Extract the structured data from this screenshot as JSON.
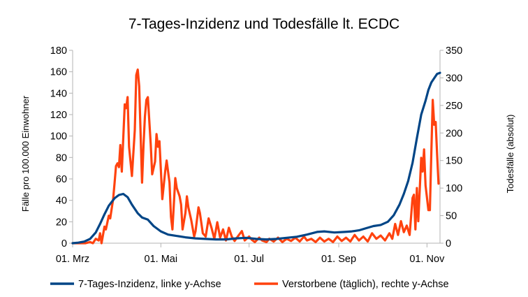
{
  "chart_data": {
    "type": "line",
    "title": "7-Tages-Inzidenz und Todesfälle lt. ECDC",
    "ylabel_left": "Fälle pro 100.000 Einwohner",
    "ylabel_right": "Todesfälle (absolut)",
    "xlabel": "",
    "grid": false,
    "legend_position": "bottom",
    "xlim": [
      "2020-03-01",
      "2020-11-10"
    ],
    "ylim_left": [
      0,
      180
    ],
    "ylim_right": [
      0,
      350
    ],
    "x_ticks": [
      {
        "date": "2020-03-01",
        "label": "01. Mrz"
      },
      {
        "date": "2020-05-01",
        "label": "01. Mai"
      },
      {
        "date": "2020-07-01",
        "label": "01. Jul"
      },
      {
        "date": "2020-09-01",
        "label": "01. Sep"
      },
      {
        "date": "2020-11-01",
        "label": "01. Nov"
      }
    ],
    "y_ticks_left": [
      0,
      20,
      40,
      60,
      80,
      100,
      120,
      140,
      160,
      180
    ],
    "y_ticks_right": [
      0,
      50,
      100,
      150,
      200,
      250,
      300,
      350
    ],
    "series": [
      {
        "name": "7-Tages-Inzidenz, linke y-Achse",
        "axis": "left",
        "color": "#004586",
        "points": [
          [
            "2020-03-01",
            0
          ],
          [
            "2020-03-05",
            0.5
          ],
          [
            "2020-03-09",
            1.5
          ],
          [
            "2020-03-13",
            4
          ],
          [
            "2020-03-17",
            10
          ],
          [
            "2020-03-20",
            18
          ],
          [
            "2020-03-23",
            27
          ],
          [
            "2020-03-26",
            35
          ],
          [
            "2020-03-30",
            42
          ],
          [
            "2020-04-02",
            45
          ],
          [
            "2020-04-05",
            46
          ],
          [
            "2020-04-08",
            43
          ],
          [
            "2020-04-11",
            36
          ],
          [
            "2020-04-15",
            28
          ],
          [
            "2020-04-18",
            24
          ],
          [
            "2020-04-22",
            22
          ],
          [
            "2020-04-26",
            16
          ],
          [
            "2020-05-01",
            11
          ],
          [
            "2020-05-06",
            8
          ],
          [
            "2020-05-11",
            7
          ],
          [
            "2020-05-18",
            5.5
          ],
          [
            "2020-05-25",
            4.5
          ],
          [
            "2020-06-01",
            4
          ],
          [
            "2020-06-08",
            3.5
          ],
          [
            "2020-06-15",
            3.5
          ],
          [
            "2020-06-22",
            4.5
          ],
          [
            "2020-06-29",
            5
          ],
          [
            "2020-07-06",
            4
          ],
          [
            "2020-07-13",
            3.5
          ],
          [
            "2020-07-20",
            4
          ],
          [
            "2020-07-27",
            5
          ],
          [
            "2020-08-03",
            6
          ],
          [
            "2020-08-10",
            8
          ],
          [
            "2020-08-17",
            10.5
          ],
          [
            "2020-08-22",
            11
          ],
          [
            "2020-08-29",
            10
          ],
          [
            "2020-09-05",
            10.5
          ],
          [
            "2020-09-10",
            11
          ],
          [
            "2020-09-15",
            12
          ],
          [
            "2020-09-20",
            14
          ],
          [
            "2020-09-25",
            16
          ],
          [
            "2020-09-30",
            17
          ],
          [
            "2020-10-05",
            20
          ],
          [
            "2020-10-09",
            26
          ],
          [
            "2020-10-13",
            36
          ],
          [
            "2020-10-16",
            46
          ],
          [
            "2020-10-19",
            58
          ],
          [
            "2020-10-22",
            75
          ],
          [
            "2020-10-25",
            98
          ],
          [
            "2020-10-28",
            120
          ],
          [
            "2020-10-31",
            133
          ],
          [
            "2020-11-02",
            143
          ],
          [
            "2020-11-04",
            150
          ],
          [
            "2020-11-06",
            154
          ],
          [
            "2020-11-08",
            158
          ],
          [
            "2020-11-10",
            159
          ]
        ]
      },
      {
        "name": "Verstorbene (täglich), rechte y-Achse",
        "axis": "right",
        "color": "#ff420e",
        "points": [
          [
            "2020-03-01",
            0
          ],
          [
            "2020-03-10",
            0
          ],
          [
            "2020-03-13",
            2
          ],
          [
            "2020-03-15",
            0
          ],
          [
            "2020-03-17",
            8
          ],
          [
            "2020-03-19",
            5
          ],
          [
            "2020-03-20",
            18
          ],
          [
            "2020-03-21",
            0
          ],
          [
            "2020-03-23",
            30
          ],
          [
            "2020-03-24",
            25
          ],
          [
            "2020-03-26",
            50
          ],
          [
            "2020-03-27",
            45
          ],
          [
            "2020-03-29",
            80
          ],
          [
            "2020-03-30",
            110
          ],
          [
            "2020-03-31",
            140
          ],
          [
            "2020-04-01",
            145
          ],
          [
            "2020-04-02",
            138
          ],
          [
            "2020-04-03",
            178
          ],
          [
            "2020-04-04",
            130
          ],
          [
            "2020-04-06",
            252
          ],
          [
            "2020-04-07",
            245
          ],
          [
            "2020-04-08",
            265
          ],
          [
            "2020-04-09",
            175
          ],
          [
            "2020-04-11",
            122
          ],
          [
            "2020-04-13",
            205
          ],
          [
            "2020-04-14",
            305
          ],
          [
            "2020-04-15",
            315
          ],
          [
            "2020-04-16",
            285
          ],
          [
            "2020-04-18",
            110
          ],
          [
            "2020-04-19",
            178
          ],
          [
            "2020-04-20",
            230
          ],
          [
            "2020-04-21",
            260
          ],
          [
            "2020-04-22",
            265
          ],
          [
            "2020-04-24",
            180
          ],
          [
            "2020-04-25",
            125
          ],
          [
            "2020-04-27",
            148
          ],
          [
            "2020-04-28",
            198
          ],
          [
            "2020-04-29",
            175
          ],
          [
            "2020-04-30",
            185
          ],
          [
            "2020-05-02",
            80
          ],
          [
            "2020-05-04",
            130
          ],
          [
            "2020-05-05",
            150
          ],
          [
            "2020-05-07",
            110
          ],
          [
            "2020-05-08",
            48
          ],
          [
            "2020-05-09",
            25
          ],
          [
            "2020-05-11",
            118
          ],
          [
            "2020-05-12",
            100
          ],
          [
            "2020-05-14",
            85
          ],
          [
            "2020-05-15",
            70
          ],
          [
            "2020-05-16",
            25
          ],
          [
            "2020-05-18",
            55
          ],
          [
            "2020-05-19",
            85
          ],
          [
            "2020-05-20",
            65
          ],
          [
            "2020-05-22",
            42
          ],
          [
            "2020-05-24",
            12
          ],
          [
            "2020-05-25",
            22
          ],
          [
            "2020-05-27",
            65
          ],
          [
            "2020-05-28",
            55
          ],
          [
            "2020-05-30",
            18
          ],
          [
            "2020-06-01",
            12
          ],
          [
            "2020-06-03",
            45
          ],
          [
            "2020-06-05",
            28
          ],
          [
            "2020-06-07",
            8
          ],
          [
            "2020-06-09",
            38
          ],
          [
            "2020-06-11",
            10
          ],
          [
            "2020-06-13",
            25
          ],
          [
            "2020-06-15",
            5
          ],
          [
            "2020-06-17",
            28
          ],
          [
            "2020-06-19",
            12
          ],
          [
            "2020-06-21",
            4
          ],
          [
            "2020-06-24",
            15
          ],
          [
            "2020-06-26",
            22
          ],
          [
            "2020-06-28",
            5
          ],
          [
            "2020-07-01",
            12
          ],
          [
            "2020-07-03",
            6
          ],
          [
            "2020-07-05",
            2
          ],
          [
            "2020-07-08",
            10
          ],
          [
            "2020-07-10",
            5
          ],
          [
            "2020-07-13",
            2
          ],
          [
            "2020-07-15",
            8
          ],
          [
            "2020-07-18",
            3
          ],
          [
            "2020-07-21",
            10
          ],
          [
            "2020-07-24",
            2
          ],
          [
            "2020-07-27",
            8
          ],
          [
            "2020-07-30",
            4
          ],
          [
            "2020-08-02",
            10
          ],
          [
            "2020-08-05",
            3
          ],
          [
            "2020-08-08",
            12
          ],
          [
            "2020-08-10",
            5
          ],
          [
            "2020-08-13",
            8
          ],
          [
            "2020-08-16",
            2
          ],
          [
            "2020-08-19",
            10
          ],
          [
            "2020-08-22",
            3
          ],
          [
            "2020-08-25",
            8
          ],
          [
            "2020-08-28",
            2
          ],
          [
            "2020-08-31",
            12
          ],
          [
            "2020-09-03",
            4
          ],
          [
            "2020-09-06",
            10
          ],
          [
            "2020-09-09",
            3
          ],
          [
            "2020-09-12",
            15
          ],
          [
            "2020-09-15",
            5
          ],
          [
            "2020-09-18",
            12
          ],
          [
            "2020-09-21",
            3
          ],
          [
            "2020-09-24",
            18
          ],
          [
            "2020-09-27",
            8
          ],
          [
            "2020-09-30",
            14
          ],
          [
            "2020-10-03",
            5
          ],
          [
            "2020-10-06",
            18
          ],
          [
            "2020-10-08",
            8
          ],
          [
            "2020-10-10",
            35
          ],
          [
            "2020-10-12",
            15
          ],
          [
            "2020-10-14",
            40
          ],
          [
            "2020-10-16",
            20
          ],
          [
            "2020-10-18",
            32
          ],
          [
            "2020-10-20",
            15
          ],
          [
            "2020-10-22",
            82
          ],
          [
            "2020-10-23",
            88
          ],
          [
            "2020-10-24",
            25
          ],
          [
            "2020-10-25",
            100
          ],
          [
            "2020-10-26",
            40
          ],
          [
            "2020-10-28",
            155
          ],
          [
            "2020-10-29",
            130
          ],
          [
            "2020-10-30",
            170
          ],
          [
            "2020-10-31",
            105
          ],
          [
            "2020-11-02",
            60
          ],
          [
            "2020-11-03",
            60
          ],
          [
            "2020-11-04",
            165
          ],
          [
            "2020-11-05",
            260
          ],
          [
            "2020-11-06",
            215
          ],
          [
            "2020-11-07",
            220
          ],
          [
            "2020-11-08",
            160
          ],
          [
            "2020-11-09",
            108
          ]
        ]
      }
    ]
  }
}
